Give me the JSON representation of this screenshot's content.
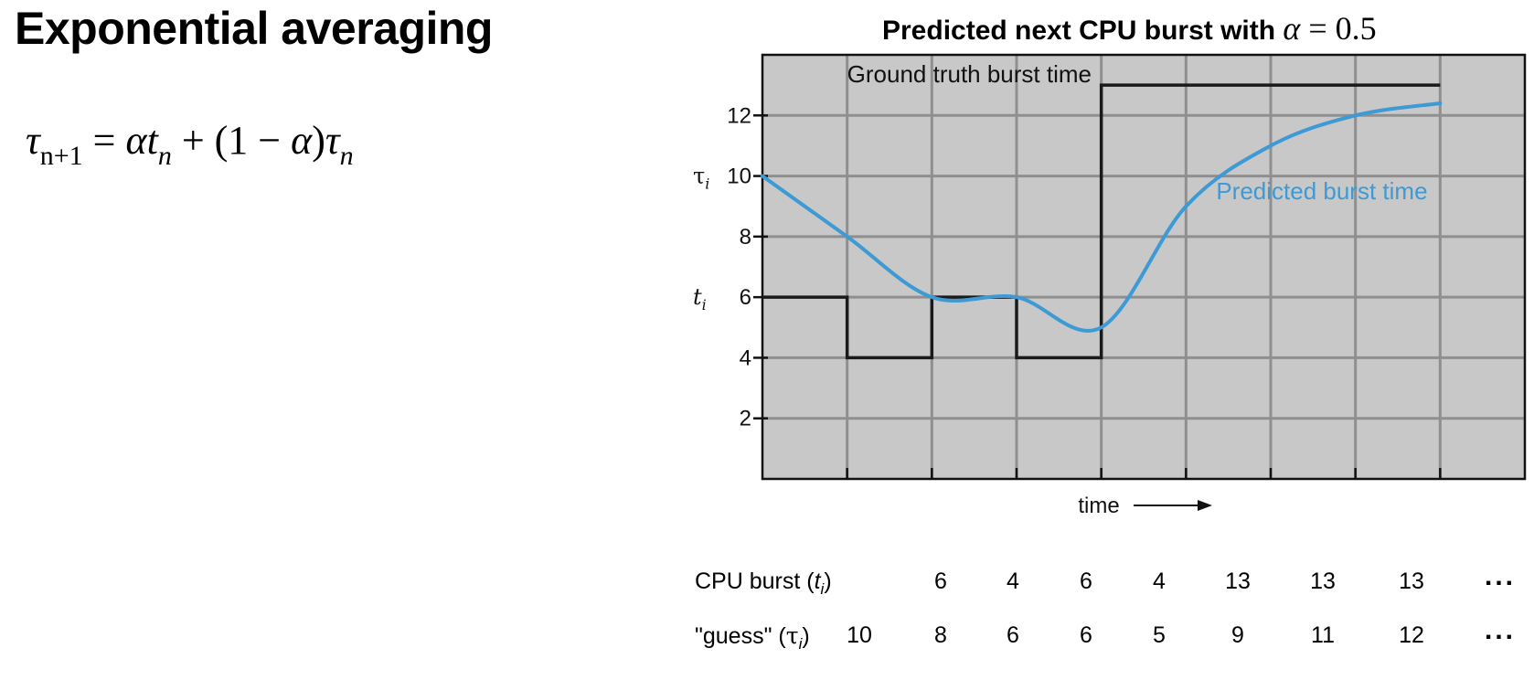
{
  "slide": {
    "title": "Exponential averaging",
    "formula": {
      "lhs": "τ",
      "lhs_sub": "n+1",
      "eq": " = ",
      "alpha": "α",
      "t": "t",
      "t_sub": "n",
      "plus": " + (1 − ",
      "alpha2": "α",
      "close": ")",
      "tau": "τ",
      "tau_sub": "n"
    }
  },
  "chart_data": {
    "type": "line",
    "title": "Predicted next CPU burst with α = 0.5",
    "title_text": "Predicted next CPU burst with ",
    "title_math_var": "α",
    "title_math_rest": " = 0.5",
    "xlabel": "time",
    "ylim": [
      0,
      14
    ],
    "yticks": [
      2,
      4,
      6,
      8,
      10,
      12
    ],
    "y_side_labels": [
      {
        "label": "τi",
        "sym": "τ",
        "sub": "i",
        "y": 10
      },
      {
        "label": "ti",
        "sym": "t",
        "sub": "i",
        "y": 6
      }
    ],
    "grid": true,
    "n_steps": 9,
    "series": [
      {
        "name": "Ground truth burst time",
        "color": "#1a1a1a",
        "style": "step",
        "values": [
          6,
          4,
          6,
          4,
          13,
          13,
          13,
          13
        ]
      },
      {
        "name": "Predicted burst time",
        "color": "#3d9ad4",
        "style": "smooth",
        "values": [
          10,
          8,
          6,
          6,
          5,
          9,
          11,
          12,
          12.4
        ]
      }
    ],
    "table": {
      "rows": [
        {
          "label_pre": "CPU burst (",
          "label_sym": "t",
          "label_sub": "i",
          "label_post": ")",
          "cells": [
            "",
            "6",
            "4",
            "6",
            "4",
            "13",
            "13",
            "13"
          ],
          "dots": "..."
        },
        {
          "label_pre": "\"guess\" (",
          "label_sym": "τ",
          "label_sub": "i",
          "label_post": ")",
          "cells": [
            "10",
            "8",
            "6",
            "6",
            "5",
            "9",
            "11",
            "12"
          ],
          "dots": "..."
        }
      ]
    }
  },
  "colors": {
    "plot_background": "#c8c8c8",
    "grid": "#8f8f8f",
    "ground_truth": "#1a1a1a",
    "prediction": "#3d9ad4"
  }
}
